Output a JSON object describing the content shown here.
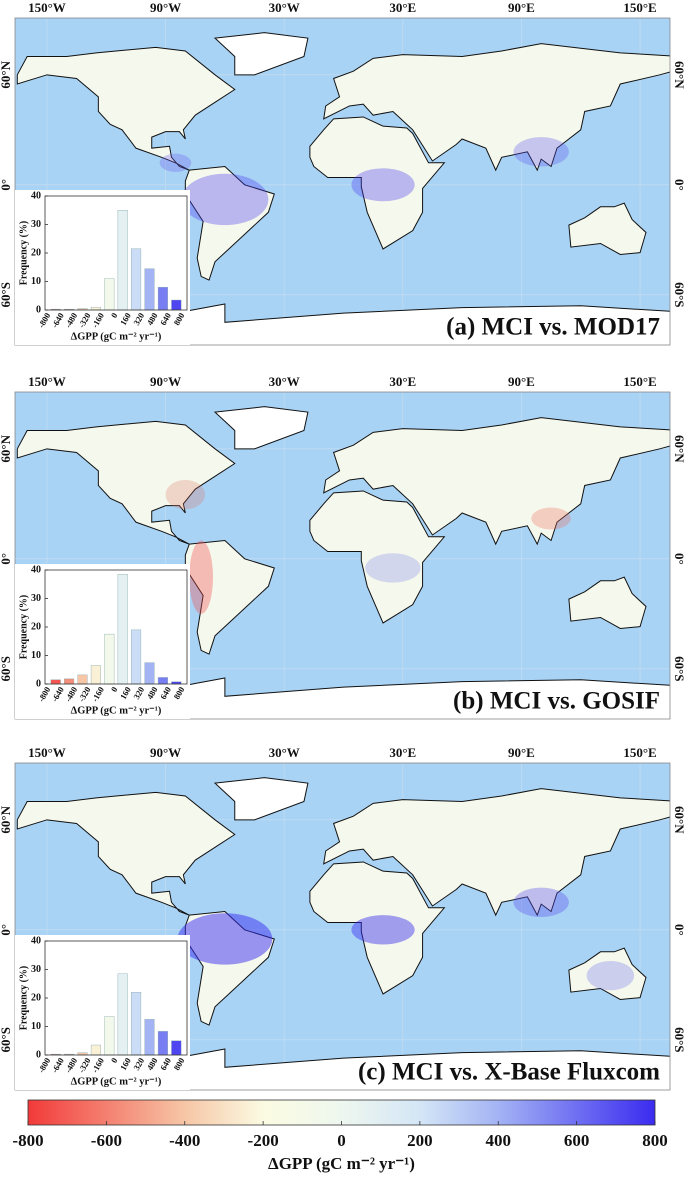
{
  "map": {
    "lon_labels": [
      "150°W",
      "90°W",
      "30°W",
      "30°E",
      "90°E",
      "150°E"
    ],
    "lat_labels": [
      "60°N",
      "0°",
      "60°S"
    ]
  },
  "chart_data": [
    {
      "type": "histogram",
      "title": "(a) MCI vs. MOD17",
      "bins": [
        -800,
        -640,
        -480,
        -320,
        -160,
        0,
        160,
        320,
        480,
        640,
        800
      ],
      "values": [
        0.3,
        0.3,
        0.5,
        1,
        11,
        35,
        21.5,
        14.5,
        8,
        3.5
      ],
      "ylim": [
        0,
        40
      ],
      "yticks": [
        0,
        10,
        20,
        30,
        40
      ],
      "ylabel": "Frequency (%)",
      "xlabel": "ΔGPP (gC m⁻² yr⁻¹)"
    },
    {
      "type": "histogram",
      "title": "(b) MCI vs. GOSIF",
      "bins": [
        -800,
        -640,
        -480,
        -320,
        -160,
        0,
        160,
        320,
        480,
        640,
        800
      ],
      "values": [
        1.5,
        1.8,
        3.2,
        6.5,
        17.5,
        38.5,
        19,
        7.5,
        2.3,
        0.8
      ],
      "ylim": [
        0,
        40
      ],
      "yticks": [
        0,
        10,
        20,
        30,
        40
      ],
      "ylabel": "Frequency (%)",
      "xlabel": "ΔGPP (gC m⁻² yr⁻¹)"
    },
    {
      "type": "histogram",
      "title": "(c) MCI vs. X-Base Fluxcom",
      "bins": [
        -800,
        -640,
        -480,
        -320,
        -160,
        0,
        160,
        320,
        480,
        640,
        800
      ],
      "values": [
        0.3,
        0.3,
        0.8,
        3.5,
        13.5,
        28.5,
        22,
        12.5,
        8.3,
        5
      ],
      "ylim": [
        0,
        40
      ],
      "yticks": [
        0,
        10,
        20,
        30,
        40
      ],
      "ylabel": "Frequency (%)",
      "xlabel": "ΔGPP (gC m⁻² yr⁻¹)"
    },
    {
      "type": "colorbar",
      "xlim": [
        -800,
        800
      ],
      "xticks": [
        -800,
        -600,
        -400,
        -200,
        0,
        200,
        400,
        600,
        800
      ],
      "xlabel": "ΔGPP (gC m⁻² yr⁻¹)",
      "colormap": [
        {
          "value": -800,
          "color": "#f23a3a"
        },
        {
          "value": -400,
          "color": "#f6c6a6"
        },
        {
          "value": -200,
          "color": "#fbfbe2"
        },
        {
          "value": 0,
          "color": "#eef7ef"
        },
        {
          "value": 200,
          "color": "#d4e6f6"
        },
        {
          "value": 400,
          "color": "#a3b3f4"
        },
        {
          "value": 800,
          "color": "#3b2bf0"
        }
      ]
    }
  ]
}
